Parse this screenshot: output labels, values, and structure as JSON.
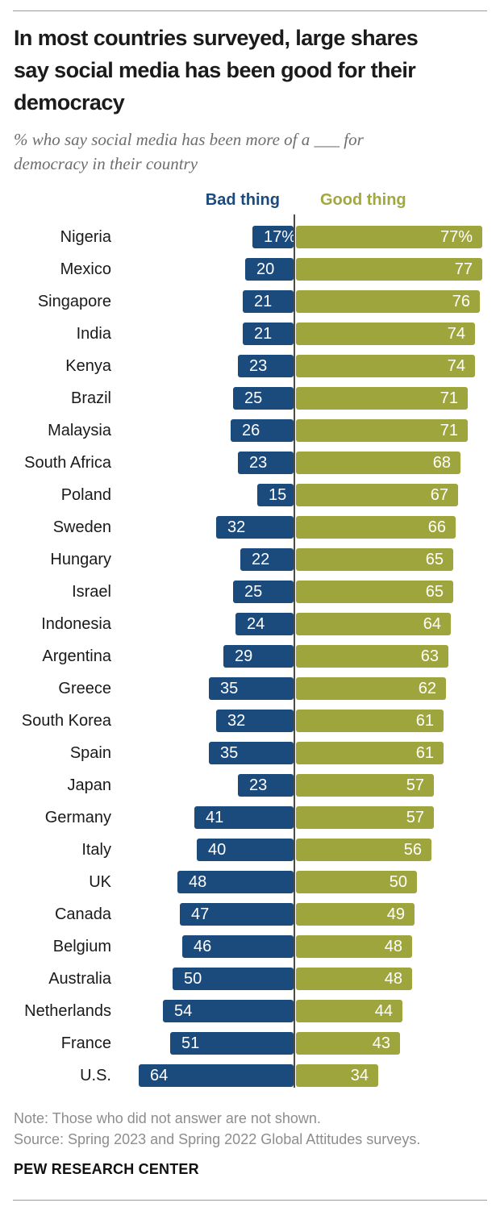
{
  "header": {
    "title_lines": [
      "In most countries surveyed, large shares",
      "say social media has been good for their",
      "democracy"
    ],
    "subtitle_lines": [
      "% who say social media has been more of a ___ for",
      "democracy in their country"
    ]
  },
  "chart_data": {
    "type": "bar",
    "variant": "horizontal-diverging",
    "legend_position": "top-center",
    "grid": false,
    "categories": [
      "Nigeria",
      "Mexico",
      "Singapore",
      "India",
      "Kenya",
      "Brazil",
      "Malaysia",
      "South Africa",
      "Poland",
      "Sweden",
      "Hungary",
      "Israel",
      "Indonesia",
      "Argentina",
      "Greece",
      "South Korea",
      "Spain",
      "Japan",
      "Germany",
      "Italy",
      "UK",
      "Canada",
      "Belgium",
      "Australia",
      "Netherlands",
      "France",
      "U.S."
    ],
    "series": [
      {
        "name": "Bad thing",
        "color": "#1b4a7c",
        "direction": "left",
        "values": [
          17,
          20,
          21,
          21,
          23,
          25,
          26,
          23,
          15,
          32,
          22,
          25,
          24,
          29,
          35,
          32,
          35,
          23,
          41,
          40,
          48,
          47,
          46,
          50,
          54,
          51,
          64
        ],
        "labels": [
          "17%",
          "20",
          "21",
          "21",
          "23",
          "25",
          "26",
          "23",
          "15",
          "32",
          "22",
          "25",
          "24",
          "29",
          "35",
          "32",
          "35",
          "23",
          "41",
          "40",
          "48",
          "47",
          "46",
          "50",
          "54",
          "51",
          "64"
        ]
      },
      {
        "name": "Good thing",
        "color": "#9fa53d",
        "direction": "right",
        "values": [
          77,
          77,
          76,
          74,
          74,
          71,
          71,
          68,
          67,
          66,
          65,
          65,
          64,
          63,
          62,
          61,
          61,
          57,
          57,
          56,
          50,
          49,
          48,
          48,
          44,
          43,
          34
        ],
        "labels": [
          "77%",
          "77",
          "76",
          "74",
          "74",
          "71",
          "71",
          "68",
          "67",
          "66",
          "65",
          "65",
          "64",
          "63",
          "62",
          "61",
          "61",
          "57",
          "57",
          "56",
          "50",
          "49",
          "48",
          "48",
          "44",
          "43",
          "34"
        ]
      }
    ],
    "axis": {
      "unit": "%",
      "center": 0
    },
    "colors": {
      "bad": "#1b4a7c",
      "good": "#9fa53d",
      "axis_line": "#4c4c44",
      "value_text": "#ffffff"
    }
  },
  "footer": {
    "note": "Note: Those who did not answer are not shown.",
    "source": "Source: Spring 2023 and Spring 2022 Global Attitudes surveys.",
    "brand": "PEW RESEARCH CENTER"
  }
}
